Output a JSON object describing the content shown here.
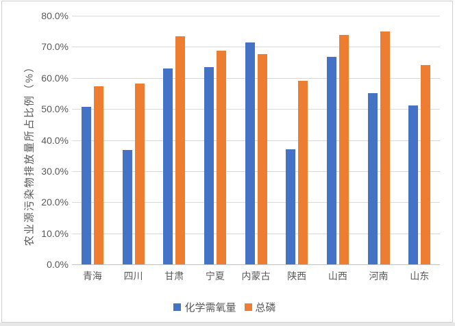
{
  "chart_data": {
    "type": "bar",
    "title": "",
    "categories": [
      "青海",
      "四川",
      "甘肃",
      "宁夏",
      "内蒙古",
      "陕西",
      "山西",
      "河南",
      "山东"
    ],
    "series": [
      {
        "name": "化学需氧量",
        "color": "#4472C4",
        "values": [
          50.7,
          36.8,
          63.1,
          63.4,
          71.4,
          37.0,
          66.8,
          55.1,
          51.1
        ]
      },
      {
        "name": "总磷",
        "color": "#ED7D31",
        "values": [
          57.2,
          58.2,
          73.5,
          68.8,
          67.7,
          59.1,
          73.8,
          74.9,
          64.1
        ]
      }
    ],
    "xlabel": "",
    "ylabel": "农业源污染物排放量所占比例（%）",
    "ylim": [
      0,
      80
    ],
    "ytick_labels": [
      "0.0%",
      "10.0%",
      "20.0%",
      "30.0%",
      "40.0%",
      "50.0%",
      "60.0%",
      "70.0%",
      "80.0%"
    ],
    "grid": true,
    "legend_position": "bottom",
    "colors": {
      "gridline": "#D9D9D9",
      "axis_line": "#C3C3C3",
      "text": "#595959"
    }
  }
}
